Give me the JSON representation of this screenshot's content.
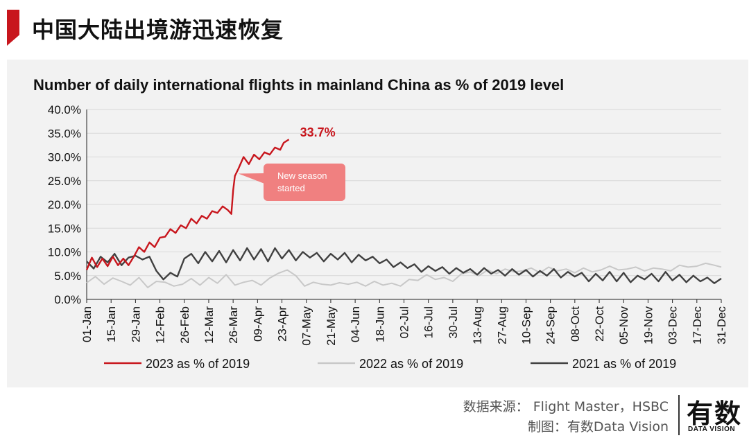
{
  "header": {
    "title": "中国大陆出境游迅速恢复"
  },
  "footer": {
    "source": "数据来源： Flight Master，HSBC",
    "credit": "制图：有数Data Vision",
    "logo_main": "有数",
    "logo_sub": "DATA VISION"
  },
  "colors": {
    "accent": "#c8161d",
    "series_2023": "#c8161d",
    "series_2022": "#c8c8c8",
    "series_2021": "#404040",
    "callout": "#f08080"
  },
  "chart_data": {
    "type": "line",
    "title": "Number of daily international flights in mainland China as % of 2019 level",
    "xlabel": "",
    "ylabel": "",
    "ylim": [
      0,
      40
    ],
    "y_ticks": [
      "0.0%",
      "5.0%",
      "10.0%",
      "15.0%",
      "20.0%",
      "25.0%",
      "30.0%",
      "35.0%",
      "40.0%"
    ],
    "x_tick_labels": [
      "01-Jan",
      "15-Jan",
      "29-Jan",
      "12-Feb",
      "26-Feb",
      "12-Mar",
      "26-Mar",
      "09-Apr",
      "23-Apr",
      "07-May",
      "21-May",
      "04-Jun",
      "18-Jun",
      "02-Jul",
      "16-Jul",
      "30-Jul",
      "13-Aug",
      "27-Aug",
      "10-Sep",
      "24-Sep",
      "08-Oct",
      "22-Oct",
      "05-Nov",
      "19-Nov",
      "03-Dec",
      "17-Dec",
      "31-Dec"
    ],
    "x_tick_days": [
      1,
      15,
      29,
      43,
      57,
      71,
      85,
      99,
      113,
      127,
      141,
      155,
      169,
      183,
      197,
      211,
      225,
      239,
      253,
      267,
      281,
      295,
      309,
      323,
      337,
      351,
      365
    ],
    "x_range": [
      1,
      365
    ],
    "grid": true,
    "legend_position": "bottom",
    "end_label": "33.7%",
    "callout": "New season started",
    "series": [
      {
        "name": "2023 as % of 2019",
        "x": [
          1,
          4,
          7,
          10,
          13,
          16,
          19,
          22,
          25,
          28,
          31,
          34,
          37,
          40,
          43,
          46,
          49,
          52,
          55,
          58,
          61,
          64,
          67,
          70,
          73,
          76,
          79,
          82,
          84,
          85,
          86,
          88,
          91,
          94,
          97,
          100,
          103,
          106,
          109,
          112,
          114,
          117
        ],
        "values": [
          6.2,
          8.8,
          6.8,
          8.6,
          7.0,
          9.0,
          7.2,
          8.6,
          7.2,
          9.0,
          11.0,
          10.0,
          12.0,
          11.0,
          13.0,
          13.2,
          14.8,
          14.0,
          15.6,
          15.0,
          17.0,
          16.0,
          17.6,
          17.0,
          18.6,
          18.2,
          19.6,
          18.8,
          18.0,
          23.0,
          26.0,
          27.5,
          30.0,
          28.5,
          30.5,
          29.5,
          31.0,
          30.5,
          32.0,
          31.5,
          33.0,
          33.7
        ]
      },
      {
        "name": "2022 as % of 2019",
        "x": [
          1,
          6,
          11,
          16,
          21,
          26,
          31,
          36,
          41,
          46,
          51,
          56,
          61,
          66,
          71,
          76,
          81,
          86,
          91,
          96,
          101,
          106,
          111,
          116,
          121,
          126,
          131,
          136,
          141,
          146,
          151,
          156,
          161,
          166,
          171,
          176,
          181,
          186,
          191,
          196,
          201,
          206,
          211,
          216,
          221,
          226,
          231,
          236,
          241,
          246,
          251,
          256,
          261,
          266,
          271,
          276,
          281,
          286,
          291,
          296,
          301,
          306,
          311,
          316,
          321,
          326,
          331,
          336,
          341,
          346,
          351,
          356,
          361,
          365
        ],
        "values": [
          3.5,
          4.8,
          3.2,
          4.5,
          3.8,
          3.0,
          4.6,
          2.5,
          3.8,
          3.6,
          2.8,
          3.2,
          4.4,
          3.0,
          4.6,
          3.4,
          5.2,
          3.0,
          3.6,
          4.0,
          3.0,
          4.5,
          5.5,
          6.2,
          5.0,
          2.8,
          3.6,
          3.2,
          3.0,
          3.5,
          3.2,
          3.6,
          2.8,
          3.8,
          3.0,
          3.4,
          2.8,
          4.2,
          4.0,
          5.2,
          4.2,
          4.6,
          3.8,
          5.4,
          5.8,
          5.0,
          6.2,
          5.4,
          6.4,
          5.8,
          6.0,
          6.6,
          5.6,
          6.8,
          6.0,
          6.4,
          5.6,
          6.6,
          5.8,
          6.2,
          7.0,
          6.2,
          6.4,
          6.8,
          6.0,
          6.6,
          6.4,
          6.0,
          7.2,
          6.8,
          7.0,
          7.6,
          7.2,
          6.8
        ]
      },
      {
        "name": "2021 as % of 2019",
        "x": [
          1,
          5,
          9,
          13,
          17,
          21,
          25,
          29,
          33,
          37,
          41,
          45,
          49,
          53,
          57,
          61,
          65,
          69,
          73,
          77,
          81,
          85,
          89,
          93,
          97,
          101,
          105,
          109,
          113,
          117,
          121,
          125,
          129,
          133,
          137,
          141,
          145,
          149,
          153,
          157,
          161,
          165,
          169,
          173,
          177,
          181,
          185,
          189,
          193,
          197,
          201,
          205,
          209,
          213,
          217,
          221,
          225,
          229,
          233,
          237,
          241,
          245,
          249,
          253,
          257,
          261,
          265,
          269,
          273,
          277,
          281,
          285,
          289,
          293,
          297,
          301,
          305,
          309,
          313,
          317,
          321,
          325,
          329,
          333,
          337,
          341,
          345,
          349,
          353,
          357,
          361,
          365
        ],
        "values": [
          8.0,
          6.5,
          9.0,
          7.8,
          9.6,
          7.2,
          8.8,
          9.2,
          8.4,
          9.0,
          6.0,
          4.2,
          5.6,
          4.8,
          8.6,
          9.6,
          7.6,
          10.0,
          8.0,
          10.2,
          7.8,
          10.4,
          8.2,
          10.8,
          8.4,
          10.6,
          8.0,
          10.8,
          8.6,
          10.4,
          8.2,
          10.0,
          8.8,
          9.8,
          8.0,
          9.6,
          8.4,
          9.8,
          7.8,
          9.4,
          8.2,
          9.0,
          7.6,
          8.4,
          6.8,
          7.8,
          6.6,
          7.4,
          5.8,
          7.0,
          6.0,
          6.8,
          5.4,
          6.6,
          5.6,
          6.4,
          5.2,
          6.6,
          5.4,
          6.2,
          5.0,
          6.4,
          5.2,
          6.2,
          4.8,
          6.0,
          5.0,
          6.4,
          4.6,
          5.8,
          4.8,
          5.6,
          3.8,
          5.4,
          4.0,
          5.8,
          3.8,
          5.6,
          3.6,
          5.0,
          4.2,
          5.4,
          3.8,
          5.8,
          4.0,
          5.2,
          3.6,
          5.0,
          3.8,
          4.6,
          3.4,
          4.4
        ]
      }
    ]
  }
}
